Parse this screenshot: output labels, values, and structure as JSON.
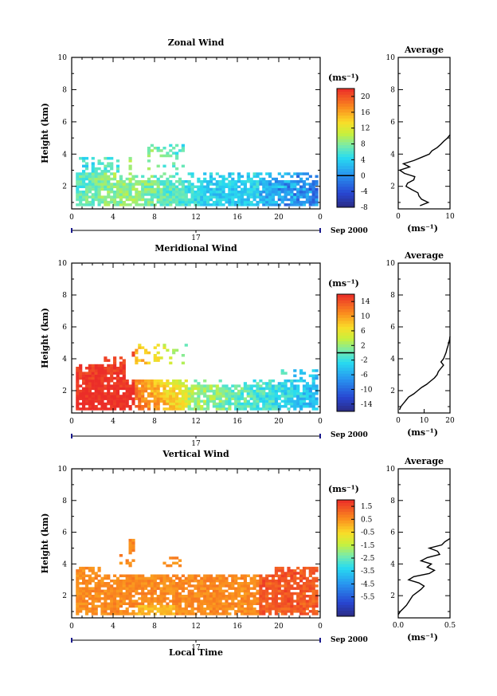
{
  "figure": {
    "date_label": "Sep 2000",
    "day_label": "17",
    "xlabel": "Local Time",
    "ylabel": "Height (km)",
    "unit_label": "(ms⁻¹)",
    "avg_title": "Average"
  },
  "chart_data": [
    {
      "type": "heatmap",
      "title": "Zonal Wind",
      "xlabel": "",
      "ylabel": "Height (km)",
      "xlim": [
        0,
        24
      ],
      "ylim": [
        0.6,
        10
      ],
      "xticks": [
        "0",
        "4",
        "8",
        "12",
        "16",
        "20",
        "0"
      ],
      "yticks": [
        "2",
        "4",
        "6",
        "8",
        "10"
      ],
      "colorbar": {
        "min": -8,
        "max": 22,
        "ticks": [
          "20",
          "16",
          "12",
          "8",
          "4",
          "0",
          "-4",
          "-8"
        ],
        "tick_values": [
          20,
          16,
          12,
          8,
          4,
          0,
          -4,
          -8
        ],
        "contour": 0
      },
      "summary": "Echoes mostly 0.6-2.8 km, values ~4-8 ms-1 (cyan), sparse 3-4.5 km near 4-11 LT, negative values after 18 LT",
      "average_profile": {
        "title": "Average",
        "xlim": [
          0,
          10
        ],
        "xticks": [
          "0",
          "10"
        ],
        "xlabel": "(ms⁻¹)",
        "yticks": [
          "2",
          "4",
          "6",
          "8",
          "10"
        ],
        "height": [
          0.8,
          1.0,
          1.2,
          1.4,
          1.6,
          1.8,
          2.0,
          2.2,
          2.4,
          2.6,
          2.8,
          3.0,
          3.2,
          3.4,
          3.6,
          3.8,
          4.0,
          4.2,
          4.4,
          4.6,
          4.8,
          5.0,
          5.2
        ],
        "value": [
          4.2,
          5.8,
          4.5,
          4.0,
          3.8,
          2.6,
          1.5,
          1.8,
          3.0,
          3.2,
          1.2,
          0.3,
          2.2,
          1.0,
          3.0,
          4.5,
          6.0,
          6.5,
          7.5,
          8.2,
          8.8,
          9.5,
          10.0
        ]
      }
    },
    {
      "type": "heatmap",
      "title": "Meridional Wind",
      "xlabel": "",
      "ylabel": "Height (km)",
      "xlim": [
        0,
        24
      ],
      "ylim": [
        0.6,
        10
      ],
      "xticks": [
        "0",
        "4",
        "8",
        "12",
        "16",
        "20",
        "0"
      ],
      "yticks": [
        "2",
        "4",
        "6",
        "8",
        "10"
      ],
      "colorbar": {
        "min": -16,
        "max": 16,
        "ticks": [
          "14",
          "10",
          "6",
          "2",
          "-2",
          "-6",
          "-10",
          "-14"
        ],
        "tick_values": [
          14,
          10,
          6,
          2,
          -2,
          -6,
          -10,
          -14
        ],
        "contour": 0
      },
      "summary": "Strong positive (red, >14 ms-1) below 3.5 km before 6 LT, decreasing to near zero/negative after 14 LT",
      "average_profile": {
        "title": "Average",
        "xlim": [
          0,
          20
        ],
        "xticks": [
          "0",
          "10",
          "20"
        ],
        "xlabel": "(ms⁻¹)",
        "yticks": [
          "2",
          "4",
          "6",
          "8",
          "10"
        ],
        "height": [
          0.8,
          1.0,
          1.2,
          1.4,
          1.6,
          1.8,
          2.0,
          2.2,
          2.4,
          2.6,
          2.8,
          3.0,
          3.2,
          3.4,
          3.6,
          3.8,
          4.0,
          4.2,
          4.4,
          4.6,
          4.8,
          5.0,
          5.2,
          5.4
        ],
        "value": [
          0.5,
          1.0,
          2.0,
          3.0,
          4.0,
          6.0,
          7.5,
          9.0,
          11.0,
          12.5,
          14.0,
          15.0,
          15.5,
          16.5,
          17.5,
          16.5,
          17.5,
          18.0,
          18.5,
          18.8,
          19.2,
          19.5,
          19.8,
          20.0
        ]
      }
    },
    {
      "type": "heatmap",
      "title": "Vertical Wind",
      "xlabel": "Local Time",
      "ylabel": "Height (km)",
      "xlim": [
        0,
        24
      ],
      "ylim": [
        0.6,
        10
      ],
      "xticks": [
        "0",
        "4",
        "8",
        "12",
        "16",
        "20",
        "0"
      ],
      "yticks": [
        "2",
        "4",
        "6",
        "8",
        "10"
      ],
      "colorbar": {
        "min": -7,
        "max": 2,
        "ticks": [
          "1.5",
          "0.5",
          "-0.5",
          "-1.5",
          "-2.5",
          "-3.5",
          "-4.5",
          "-5.5"
        ],
        "tick_values": [
          1.5,
          0.5,
          -0.5,
          -1.5,
          -2.5,
          -3.5,
          -4.5,
          -5.5
        ]
      },
      "summary": "Mostly weak positive (yellow-orange, 0-1 ms-1) below 3.5 km, orange patches after 18 LT",
      "average_profile": {
        "title": "Average",
        "xlim": [
          0,
          0.5
        ],
        "xticks": [
          "0.0",
          "0.5"
        ],
        "xlabel": "(ms⁻¹)",
        "yticks": [
          "2",
          "4",
          "6",
          "8",
          "10"
        ],
        "height": [
          0.8,
          1.0,
          1.2,
          1.4,
          1.6,
          1.8,
          2.0,
          2.2,
          2.4,
          2.6,
          2.8,
          3.0,
          3.2,
          3.4,
          3.6,
          3.8,
          4.0,
          4.2,
          4.4,
          4.6,
          4.8,
          5.0,
          5.2,
          5.4,
          5.6
        ],
        "value": [
          0.0,
          0.02,
          0.05,
          0.08,
          0.1,
          0.12,
          0.14,
          0.18,
          0.22,
          0.25,
          0.2,
          0.1,
          0.15,
          0.3,
          0.35,
          0.28,
          0.32,
          0.22,
          0.28,
          0.4,
          0.38,
          0.3,
          0.42,
          0.45,
          0.5
        ]
      }
    }
  ]
}
